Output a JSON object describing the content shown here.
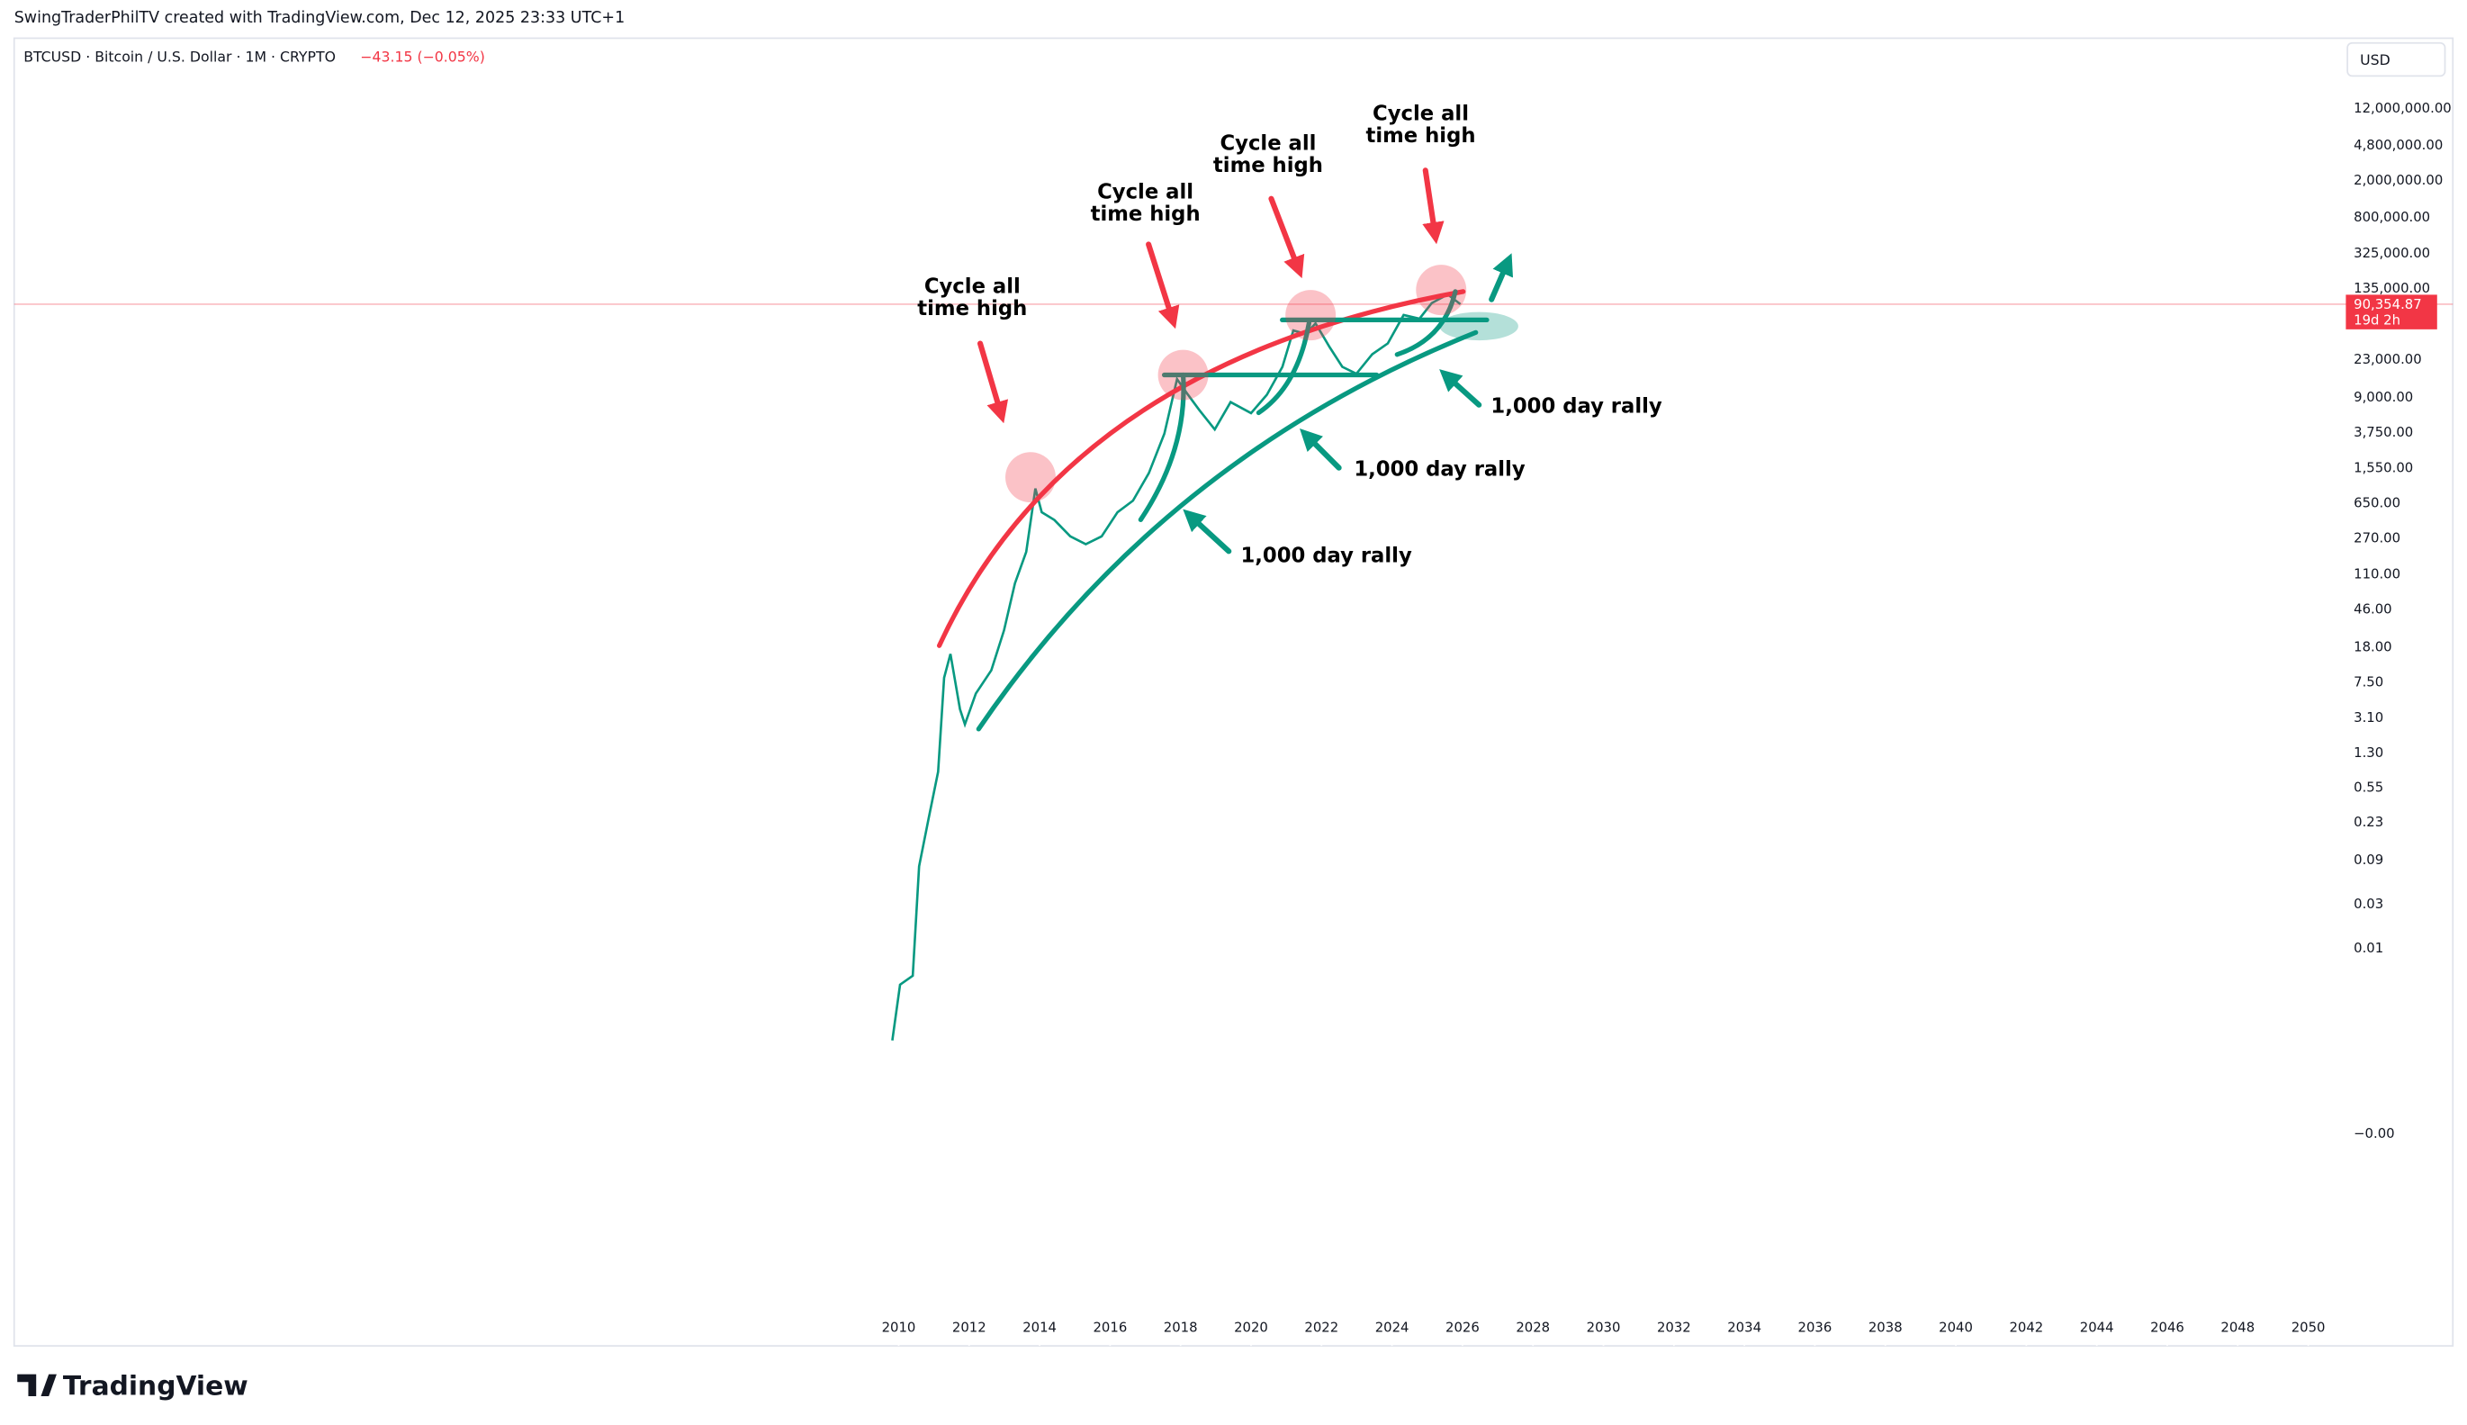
{
  "header": "SwingTraderPhilTV created with TradingView.com, Dec 12, 2025 23:33 UTC+1",
  "symbol": "BTCUSD · Bitcoin / U.S. Dollar · 1M · CRYPTO",
  "change": "−43.15 (−0.05%)",
  "currency": "USD",
  "brand": "TradingView",
  "chart_data": {
    "type": "line",
    "log_scale": true,
    "grid": false,
    "color": "#089981",
    "x": [
      2009.82,
      2010.04,
      2010.4,
      2010.58,
      2010.85,
      2011.12,
      2011.29,
      2011.47,
      2011.74,
      2011.88,
      2012.19,
      2012.63,
      2012.99,
      2013.3,
      2013.62,
      2013.88,
      2014.06,
      2014.42,
      2014.87,
      2015.31,
      2015.76,
      2016.21,
      2016.65,
      2017.1,
      2017.54,
      2017.9,
      2018.21,
      2018.53,
      2018.97,
      2019.42,
      2020.0,
      2020.45,
      2020.89,
      2021.2,
      2021.56,
      2021.83,
      2022.23,
      2022.59,
      2022.99,
      2023.44,
      2023.88,
      2024.33,
      2024.78,
      2025.13,
      2025.58,
      2025.94
    ],
    "values": [
      0.001,
      0.004,
      0.005,
      0.076,
      0.25,
      0.8,
      8.3,
      15,
      3.8,
      2.6,
      5.6,
      10,
      27,
      87,
      190,
      920,
      510,
      420,
      280,
      230,
      280,
      510,
      680,
      1350,
      3600,
      14000,
      9500,
      6500,
      4000,
      7900,
      6000,
      9500,
      19000,
      47000,
      43000,
      56000,
      31000,
      19000,
      16000,
      26000,
      34000,
      69000,
      63000,
      93000,
      115000,
      90354.87
    ],
    "last_price": {
      "value": 90354.87,
      "label": "90,354.87"
    },
    "countdown": "19d 2h",
    "xlim": [
      1984.9,
      2050.8
    ],
    "xticks": [
      2010,
      2012,
      2014,
      2016,
      2018,
      2020,
      2022,
      2024,
      2026,
      2028,
      2030,
      2032,
      2034,
      2036,
      2038,
      2040,
      2042,
      2044,
      2046,
      2048,
      2050
    ],
    "ylim": [
      5e-07,
      67600000
    ],
    "yticks": [
      {
        "value": 12000000,
        "label": "12,000,000.00"
      },
      {
        "value": 4800000,
        "label": "4,800,000.00"
      },
      {
        "value": 2000000,
        "label": "2,000,000.00"
      },
      {
        "value": 800000,
        "label": "800,000.00"
      },
      {
        "value": 325000,
        "label": "325,000.00"
      },
      {
        "value": 135000,
        "label": "135,000.00"
      },
      {
        "value": 23000,
        "label": "23,000.00"
      },
      {
        "value": 9000,
        "label": "9,000.00"
      },
      {
        "value": 3750,
        "label": "3,750.00"
      },
      {
        "value": 1550,
        "label": "1,550.00"
      },
      {
        "value": 650,
        "label": "650.00"
      },
      {
        "value": 270,
        "label": "270.00"
      },
      {
        "value": 110,
        "label": "110.00"
      },
      {
        "value": 46,
        "label": "46.00"
      },
      {
        "value": 18,
        "label": "18.00"
      },
      {
        "value": 7.5,
        "label": "7.50"
      },
      {
        "value": 3.1,
        "label": "3.10"
      },
      {
        "value": 1.3,
        "label": "1.30"
      },
      {
        "value": 0.55,
        "label": "0.55"
      },
      {
        "value": 0.23,
        "label": "0.23"
      },
      {
        "value": 0.09,
        "label": "0.09"
      },
      {
        "value": 0.03,
        "label": "0.03"
      },
      {
        "value": 0.01,
        "label": "0.01"
      },
      {
        "value": 0.0001,
        "label": "−0.00"
      }
    ],
    "annotations": [
      {
        "lines": [
          "Cycle all",
          "time high"
        ]
      },
      {
        "lines": [
          "Cycle all",
          "time high"
        ]
      },
      {
        "lines": [
          "Cycle all",
          "time high"
        ]
      },
      {
        "lines": [
          "Cycle all",
          "time high"
        ]
      },
      {
        "lines": [
          "1,000 day rally"
        ]
      },
      {
        "lines": [
          "1,000 day rally"
        ]
      },
      {
        "lines": [
          "1,000 day rally"
        ]
      }
    ]
  }
}
